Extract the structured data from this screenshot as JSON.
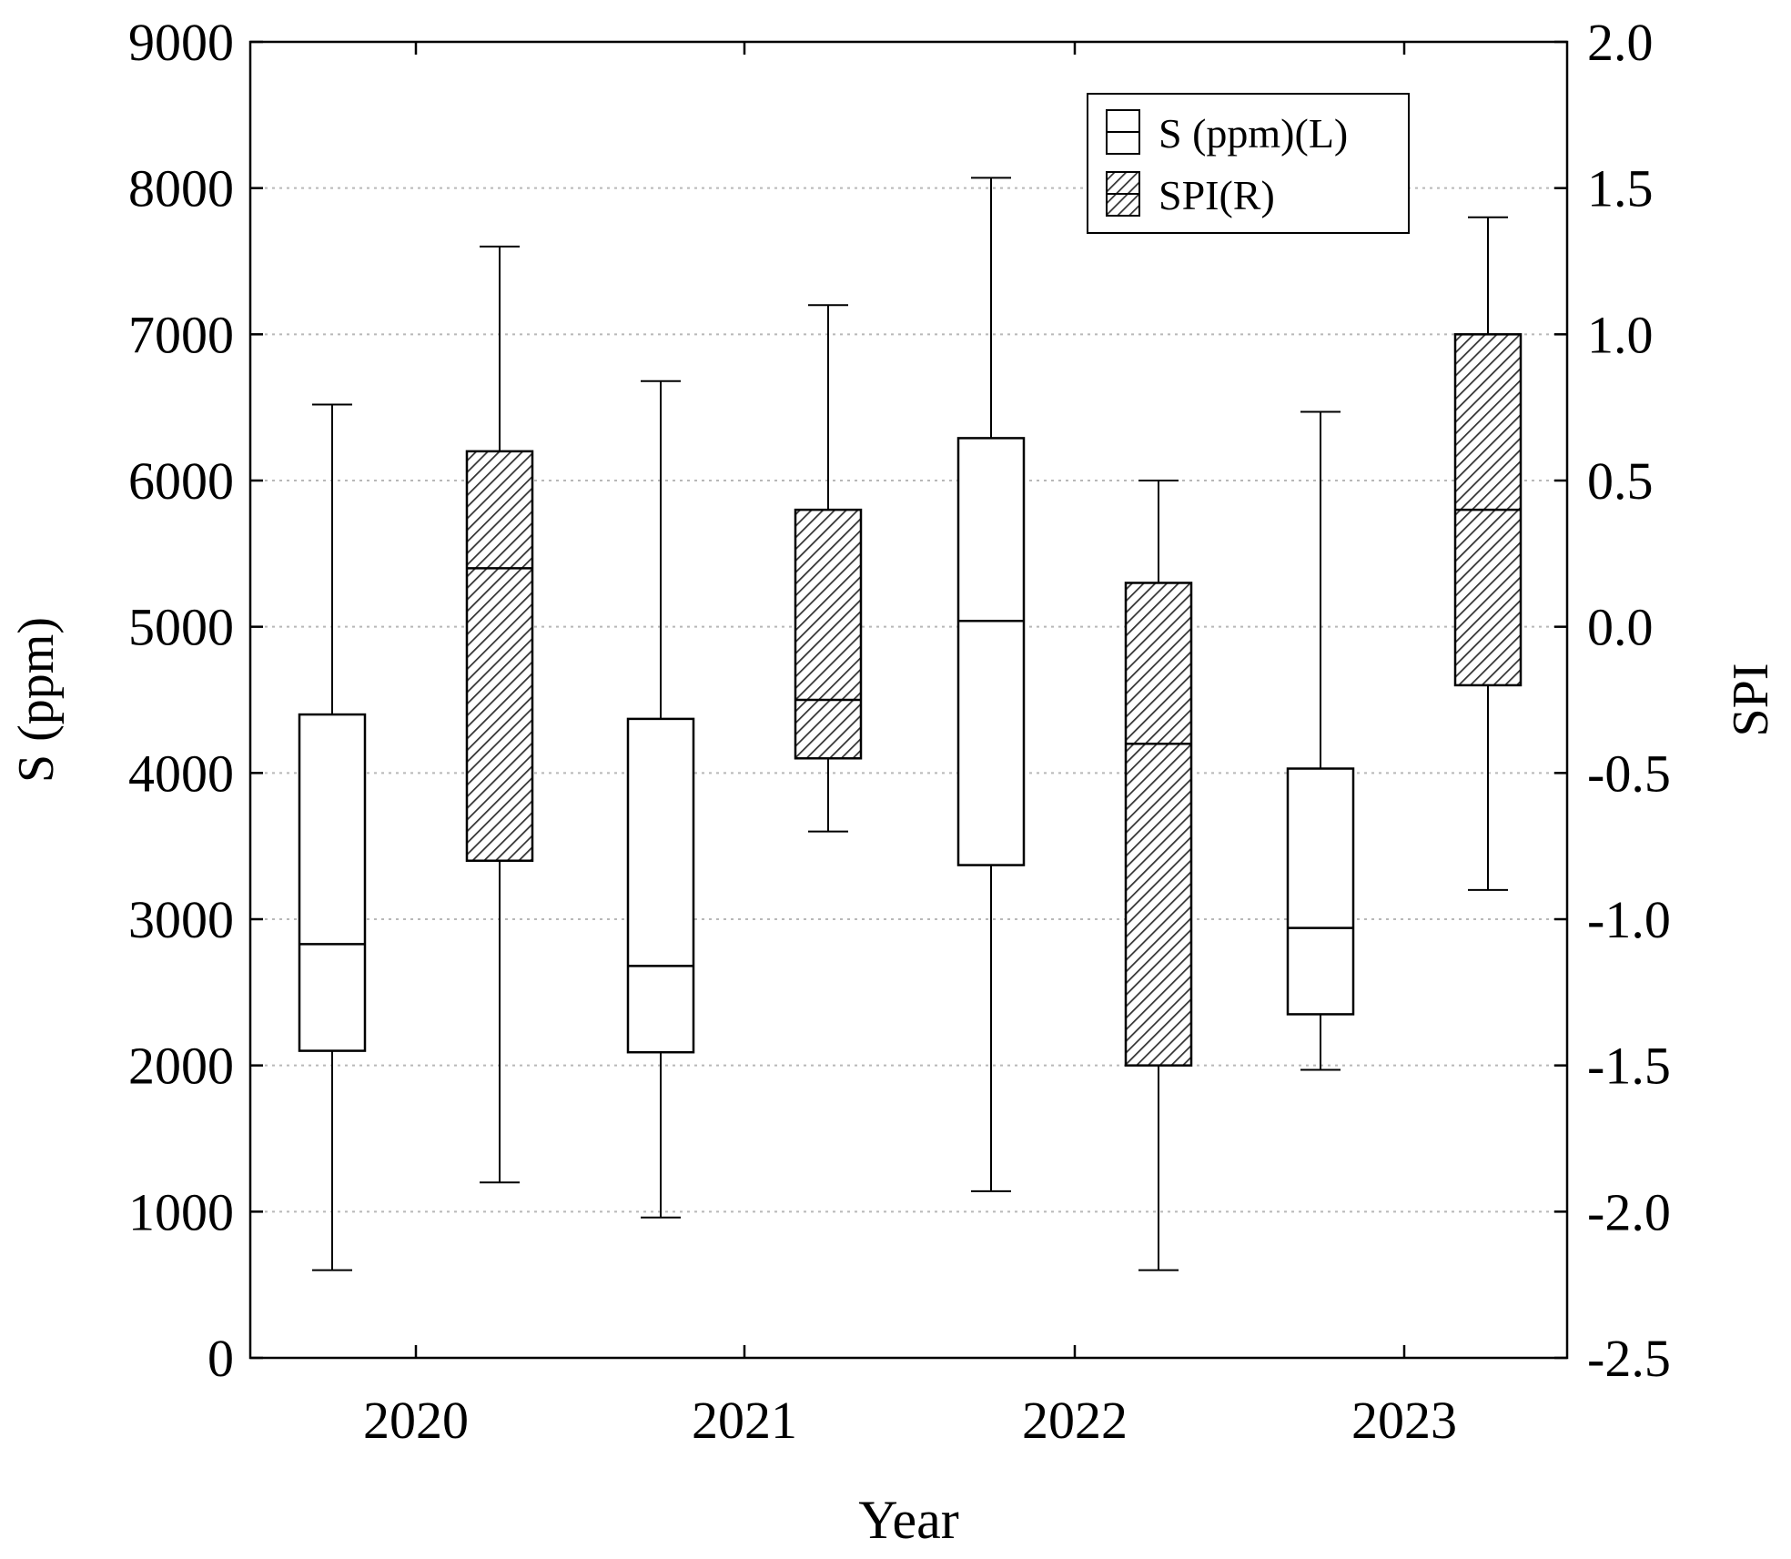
{
  "chart_data": {
    "type": "boxplot",
    "xlabel": "Year",
    "ylabel_left": "S (ppm)",
    "ylabel_right": "SPI",
    "categories": [
      "2020",
      "2021",
      "2022",
      "2023"
    ],
    "y_left": {
      "lim": [
        0,
        9000
      ],
      "ticks": [
        0,
        1000,
        2000,
        3000,
        4000,
        5000,
        6000,
        7000,
        8000,
        9000
      ],
      "tick_labels": [
        "0",
        "1000",
        "2000",
        "3000",
        "4000",
        "5000",
        "6000",
        "7000",
        "8000",
        "9000"
      ]
    },
    "y_right": {
      "lim": [
        -2.5,
        2.0
      ],
      "ticks": [
        -2.5,
        -2.0,
        -1.5,
        -1.0,
        -0.5,
        0.0,
        0.5,
        1.0,
        1.5,
        2.0
      ],
      "tick_labels": [
        "-2.5",
        "-2.0",
        "-1.5",
        "-1.0",
        "-0.5",
        "0.0",
        "0.5",
        "1.0",
        "1.5",
        "2.0"
      ]
    },
    "grid": "horizontal dotted",
    "legend": {
      "position": "top-right",
      "entries": [
        "S (ppm)(L)",
        "SPI(R)"
      ]
    },
    "series": [
      {
        "name": "S (ppm)(L)",
        "axis": "left",
        "fill": "open",
        "boxes": [
          {
            "category": "2020",
            "min": 600,
            "q1": 2100,
            "median": 2830,
            "q3": 4400,
            "max": 6520
          },
          {
            "category": "2021",
            "min": 960,
            "q1": 2090,
            "median": 2680,
            "q3": 4370,
            "max": 6680
          },
          {
            "category": "2022",
            "min": 1140,
            "q1": 3370,
            "median": 5040,
            "q3": 6290,
            "max": 8070
          },
          {
            "category": "2023",
            "min": 1970,
            "q1": 2350,
            "median": 2940,
            "q3": 4030,
            "max": 6470
          }
        ]
      },
      {
        "name": "SPI(R)",
        "axis": "right",
        "fill": "hatched",
        "boxes": [
          {
            "category": "2020",
            "min": -1.9,
            "q1": -0.8,
            "median": 0.2,
            "q3": 0.6,
            "max": 1.3
          },
          {
            "category": "2021",
            "min": -0.7,
            "q1": -0.45,
            "median": -0.25,
            "q3": 0.4,
            "max": 1.1
          },
          {
            "category": "2022",
            "min": -2.2,
            "q1": -1.5,
            "median": -0.4,
            "q3": 0.15,
            "max": 0.5
          },
          {
            "category": "2023",
            "min": -0.9,
            "q1": -0.2,
            "median": 0.4,
            "q3": 1.0,
            "max": 1.4
          }
        ]
      }
    ]
  }
}
